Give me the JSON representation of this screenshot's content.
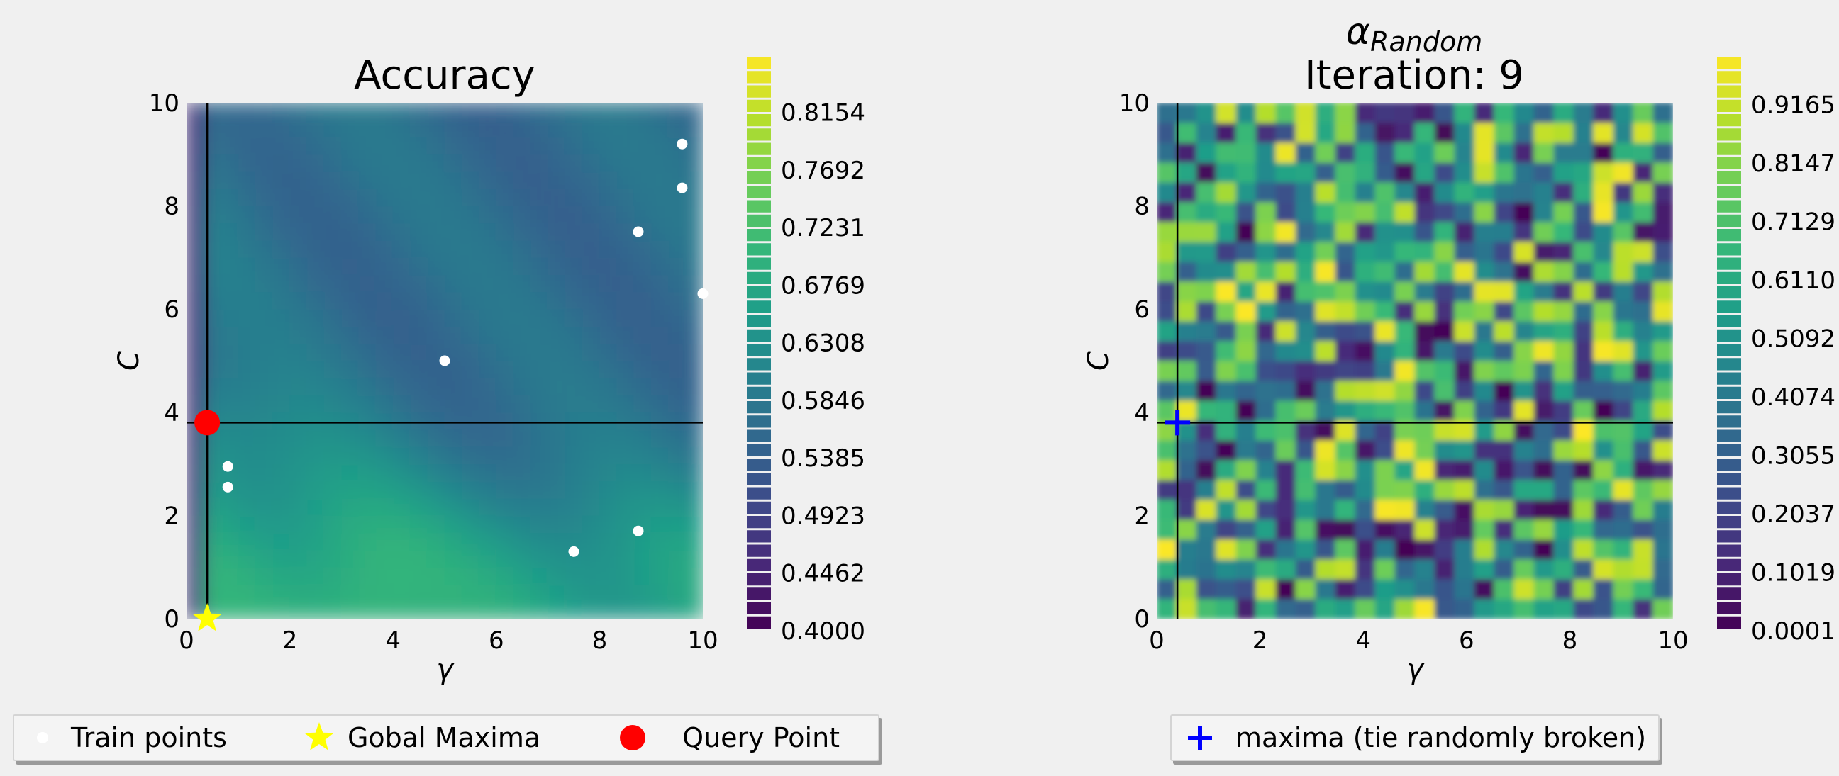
{
  "chart_data": [
    {
      "type": "heatmap",
      "title": "Accuracy",
      "xlabel": "γ",
      "ylabel": "C",
      "xlim": [
        0,
        10
      ],
      "ylim": [
        0,
        10
      ],
      "xticks": [
        "0",
        "2",
        "4",
        "6",
        "8",
        "10"
      ],
      "yticks": [
        "0",
        "2",
        "4",
        "6",
        "8",
        "10"
      ],
      "colormap": "viridis",
      "colorbar": {
        "range": [
          0.4,
          0.86
        ],
        "tick_labels": [
          "0.4000",
          "0.4462",
          "0.4923",
          "0.5385",
          "0.5846",
          "0.6308",
          "0.6769",
          "0.7231",
          "0.7692",
          "0.8154"
        ]
      },
      "train_points": [
        {
          "x": 0.8,
          "y": 2.95
        },
        {
          "x": 0.8,
          "y": 2.55
        },
        {
          "x": 5.0,
          "y": 5.0
        },
        {
          "x": 7.5,
          "y": 1.3
        },
        {
          "x": 8.75,
          "y": 1.7
        },
        {
          "x": 8.75,
          "y": 7.5
        },
        {
          "x": 9.6,
          "y": 8.35
        },
        {
          "x": 9.6,
          "y": 9.2
        },
        {
          "x": 10.0,
          "y": 6.3
        }
      ],
      "global_maxima": {
        "x": 0.4,
        "y": 0.0
      },
      "query_point": {
        "x": 0.4,
        "y": 3.8
      },
      "crosshair": {
        "x": 0.4,
        "y": 3.8
      },
      "legend": [
        "Train points",
        "Gobal Maxima",
        "Query Point"
      ],
      "colors": {
        "train": "#ffffff",
        "maxima": "#ffff00",
        "query": "#ff0000"
      }
    },
    {
      "type": "heatmap",
      "title_symbol": "α",
      "title_subscript": "Random",
      "title": "Iteration: 9",
      "xlabel": "γ",
      "ylabel": "C",
      "xlim": [
        0,
        10
      ],
      "ylim": [
        0,
        10
      ],
      "xticks": [
        "0",
        "2",
        "4",
        "6",
        "8",
        "10"
      ],
      "yticks": [
        "0",
        "2",
        "4",
        "6",
        "8",
        "10"
      ],
      "colormap": "viridis",
      "colorbar": {
        "range": [
          0.0001,
          1.0
        ],
        "tick_labels": [
          "0.0001",
          "0.1019",
          "0.2037",
          "0.3055",
          "0.4074",
          "0.5092",
          "0.6110",
          "0.7129",
          "0.8147",
          "0.9165"
        ]
      },
      "maxima": {
        "x": 0.4,
        "y": 3.8
      },
      "crosshair": {
        "x": 0.4,
        "y": 3.8
      },
      "legend": [
        "maxima (tie randomly broken)"
      ],
      "colors": {
        "maxima": "#0000ff"
      }
    }
  ]
}
